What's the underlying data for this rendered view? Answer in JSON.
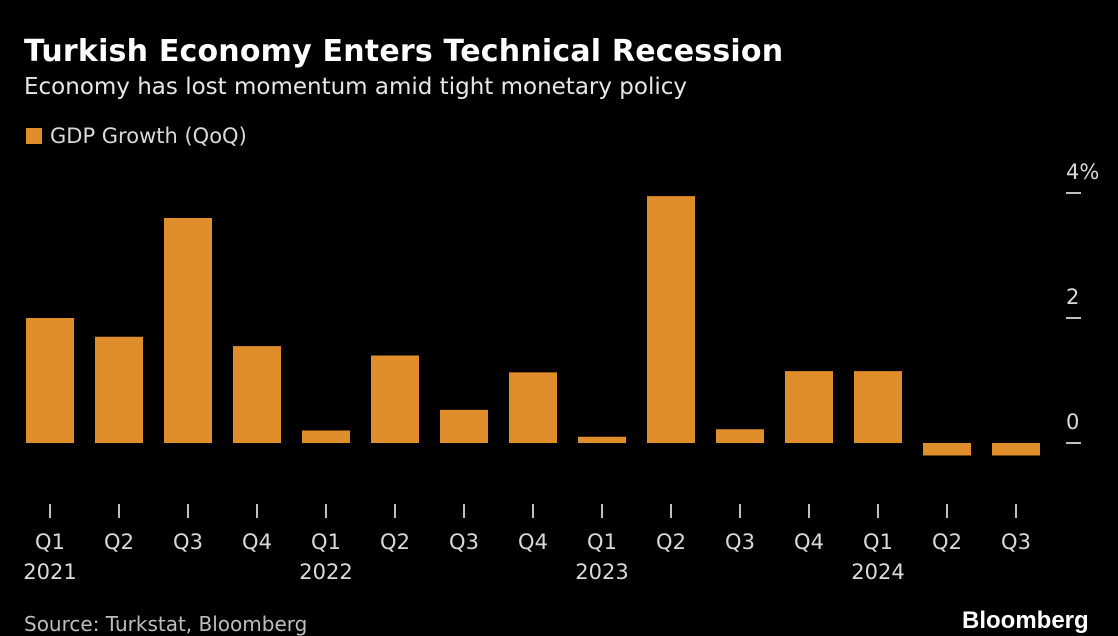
{
  "header": {
    "title": "Turkish Economy Enters Technical Recession",
    "subtitle": "Economy has lost momentum amid tight monetary policy"
  },
  "footer": {
    "source": "Source: Turkstat, Bloomberg",
    "logo": "Bloomberg"
  },
  "colors": {
    "bar": "#e08e2b",
    "background": "#000000",
    "text": "#ffffff"
  },
  "chart_data": {
    "type": "bar",
    "legend_position": "top-left",
    "grid": false,
    "ylim": [
      -1,
      4
    ],
    "y_ticks": [
      {
        "value": 4,
        "label": "4%"
      },
      {
        "value": 2,
        "label": "2"
      },
      {
        "value": 0,
        "label": "0"
      }
    ],
    "categories": [
      "Q1",
      "Q2",
      "Q3",
      "Q4",
      "Q1",
      "Q2",
      "Q3",
      "Q4",
      "Q1",
      "Q2",
      "Q3",
      "Q4",
      "Q1",
      "Q2",
      "Q3"
    ],
    "year_labels": [
      "2021",
      "",
      "",
      "",
      "2022",
      "",
      "",
      "",
      "2023",
      "",
      "",
      "",
      "2024",
      "",
      ""
    ],
    "series": [
      {
        "name": "GDP Growth (QoQ)",
        "values": [
          2.0,
          1.7,
          3.6,
          1.55,
          0.2,
          1.4,
          0.53,
          1.13,
          0.1,
          3.95,
          0.22,
          1.15,
          1.15,
          -0.2,
          -0.2
        ]
      }
    ]
  }
}
